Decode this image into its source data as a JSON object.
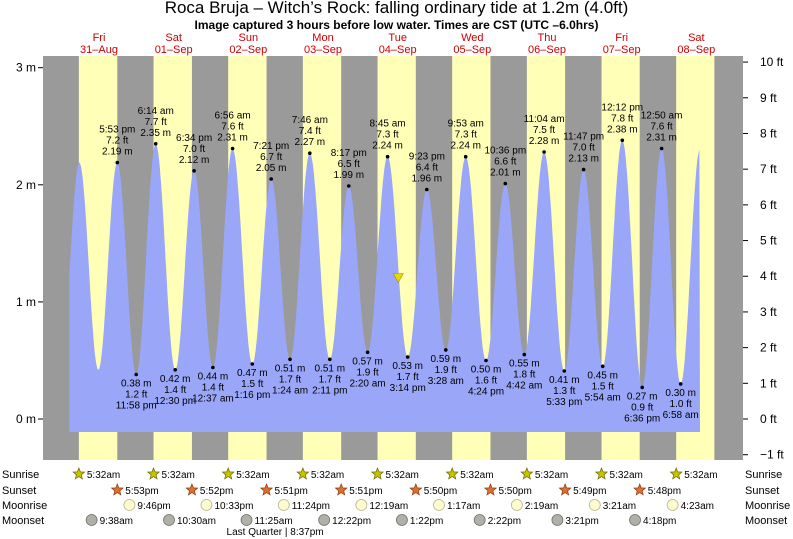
{
  "header": {
    "title": "Roca Bruja – Witch’s Rock: falling  ordinary tide at 1.2m (4.0ft)",
    "subtitle": "Image captured 3 hours before low water. Times are CST (UTC –6.0hrs)"
  },
  "colors": {
    "night": "#9a9a9a",
    "day": "#ffffb8",
    "tide": "#9aa6f8",
    "day_label": "#cc0000",
    "current_marker": "#e8d800"
  },
  "chart_data": {
    "type": "area",
    "title": "Roca Bruja – Witch’s Rock: falling  ordinary tide at 1.2m (4.0ft)",
    "y_left_label": "m",
    "y_right_label": "ft",
    "y_left_ticks": [
      "0 m",
      "1 m",
      "2 m",
      "3 m"
    ],
    "y_right_ticks": [
      "−1 ft",
      "0 ft",
      "1 ft",
      "2 ft",
      "3 ft",
      "4 ft",
      "5 ft",
      "6 ft",
      "7 ft",
      "8 ft",
      "9 ft",
      "10 ft"
    ],
    "ylim_m": [
      -0.35,
      3.1
    ],
    "xlim_hours": [
      -6,
      219
    ],
    "days": [
      {
        "dow": "Fri",
        "date": "31–Aug"
      },
      {
        "dow": "Sat",
        "date": "01–Sep"
      },
      {
        "dow": "Sun",
        "date": "02–Sep"
      },
      {
        "dow": "Mon",
        "date": "03–Sep"
      },
      {
        "dow": "Tue",
        "date": "04–Sep"
      },
      {
        "dow": "Wed",
        "date": "05–Sep"
      },
      {
        "dow": "Thu",
        "date": "06–Sep"
      },
      {
        "dow": "Fri",
        "date": "07–Sep"
      },
      {
        "dow": "Sat",
        "date": "08–Sep"
      }
    ],
    "extremes": [
      {
        "kind": "high",
        "day": 0,
        "time": "5:53 pm",
        "ft": "7.2 ft",
        "m": "2.19 m",
        "h": 17.88,
        "v": 2.19
      },
      {
        "kind": "low",
        "day": 0,
        "time": "11:58 pm",
        "ft": "1.2 ft",
        "m": "0.38 m",
        "h": 23.97,
        "v": 0.38
      },
      {
        "kind": "high",
        "day": 1,
        "time": "6:14 am",
        "ft": "7.7 ft",
        "m": "2.35 m",
        "h": 30.23,
        "v": 2.35
      },
      {
        "kind": "low",
        "day": 1,
        "time": "12:30 pm",
        "ft": "1.4 ft",
        "m": "0.42 m",
        "h": 36.5,
        "v": 0.42
      },
      {
        "kind": "high",
        "day": 1,
        "time": "6:34 pm",
        "ft": "7.0 ft",
        "m": "2.12 m",
        "h": 42.57,
        "v": 2.12
      },
      {
        "kind": "low",
        "day": 2,
        "time": "12:37 am",
        "ft": "1.4 ft",
        "m": "0.44 m",
        "h": 48.62,
        "v": 0.44
      },
      {
        "kind": "high",
        "day": 2,
        "time": "6:56 am",
        "ft": "7.6 ft",
        "m": "2.31 m",
        "h": 54.93,
        "v": 2.31
      },
      {
        "kind": "low",
        "day": 2,
        "time": "1:16 pm",
        "ft": "1.5 ft",
        "m": "0.47 m",
        "h": 61.27,
        "v": 0.47
      },
      {
        "kind": "high",
        "day": 2,
        "time": "7:21 pm",
        "ft": "6.7 ft",
        "m": "2.05 m",
        "h": 67.35,
        "v": 2.05
      },
      {
        "kind": "low",
        "day": 3,
        "time": "1:24 am",
        "ft": "1.7 ft",
        "m": "0.51 m",
        "h": 73.4,
        "v": 0.51
      },
      {
        "kind": "high",
        "day": 3,
        "time": "7:46 am",
        "ft": "7.4 ft",
        "m": "2.27 m",
        "h": 79.77,
        "v": 2.27
      },
      {
        "kind": "low",
        "day": 3,
        "time": "2:11 pm",
        "ft": "1.7 ft",
        "m": "0.51 m",
        "h": 86.18,
        "v": 0.51
      },
      {
        "kind": "high",
        "day": 3,
        "time": "8:17 pm",
        "ft": "6.5 ft",
        "m": "1.99 m",
        "h": 92.28,
        "v": 1.99
      },
      {
        "kind": "low",
        "day": 4,
        "time": "2:20 am",
        "ft": "1.9 ft",
        "m": "0.57 m",
        "h": 98.33,
        "v": 0.57
      },
      {
        "kind": "high",
        "day": 4,
        "time": "8:45 am",
        "ft": "7.3 ft",
        "m": "2.24 m",
        "h": 104.75,
        "v": 2.24
      },
      {
        "kind": "low",
        "day": 4,
        "time": "3:14 pm",
        "ft": "1.7 ft",
        "m": "0.53 m",
        "h": 111.23,
        "v": 0.53
      },
      {
        "kind": "high",
        "day": 4,
        "time": "9:23 pm",
        "ft": "6.4 ft",
        "m": "1.96 m",
        "h": 117.38,
        "v": 1.96
      },
      {
        "kind": "low",
        "day": 5,
        "time": "3:28 am",
        "ft": "1.9 ft",
        "m": "0.59 m",
        "h": 123.47,
        "v": 0.59
      },
      {
        "kind": "high",
        "day": 5,
        "time": "9:53 am",
        "ft": "7.3 ft",
        "m": "2.24 m",
        "h": 129.88,
        "v": 2.24
      },
      {
        "kind": "low",
        "day": 5,
        "time": "4:24 pm",
        "ft": "1.6 ft",
        "m": "0.50 m",
        "h": 136.4,
        "v": 0.5
      },
      {
        "kind": "high",
        "day": 5,
        "time": "10:36 pm",
        "ft": "6.6 ft",
        "m": "2.01 m",
        "h": 142.6,
        "v": 2.01
      },
      {
        "kind": "low",
        "day": 6,
        "time": "4:42 am",
        "ft": "1.8 ft",
        "m": "0.55 m",
        "h": 148.7,
        "v": 0.55
      },
      {
        "kind": "high",
        "day": 6,
        "time": "11:04 am",
        "ft": "7.5 ft",
        "m": "2.28 m",
        "h": 155.07,
        "v": 2.28
      },
      {
        "kind": "low",
        "day": 6,
        "time": "5:33 pm",
        "ft": "1.3 ft",
        "m": "0.41 m",
        "h": 161.55,
        "v": 0.41
      },
      {
        "kind": "high",
        "day": 6,
        "time": "11:47 pm",
        "ft": "7.0 ft",
        "m": "2.13 m",
        "h": 167.78,
        "v": 2.13
      },
      {
        "kind": "low",
        "day": 7,
        "time": "5:54 am",
        "ft": "1.5 ft",
        "m": "0.45 m",
        "h": 173.9,
        "v": 0.45
      },
      {
        "kind": "high",
        "day": 7,
        "time": "12:12 pm",
        "ft": "7.8 ft",
        "m": "2.38 m",
        "h": 180.2,
        "v": 2.38
      },
      {
        "kind": "low",
        "day": 7,
        "time": "6:36 pm",
        "ft": "0.9 ft",
        "m": "0.27 m",
        "h": 186.6,
        "v": 0.27
      },
      {
        "kind": "high",
        "day": 8,
        "time": "12:50 am",
        "ft": "7.6 ft",
        "m": "2.31 m",
        "h": 192.83,
        "v": 2.31
      },
      {
        "kind": "low",
        "day": 8,
        "time": "6:58 am",
        "ft": "1.0 ft",
        "m": "0.30 m",
        "h": 198.97,
        "v": 0.3
      }
    ],
    "current": {
      "h": 108.2,
      "v": 1.2
    },
    "sun": {
      "sunrise": "5:32am",
      "sunset_times": [
        "5:53pm",
        "5:52pm",
        "5:51pm",
        "5:51pm",
        "5:50pm",
        "5:50pm",
        "5:49pm",
        "5:48pm"
      ],
      "sunrise_h": 5.53,
      "sunset_h": [
        17.88,
        17.87,
        17.85,
        17.85,
        17.83,
        17.83,
        17.82,
        17.8
      ]
    },
    "moon": {
      "moonrise": [
        {
          "t": "9:46pm",
          "h": 21.77
        },
        {
          "t": "10:33pm",
          "h": 46.55
        },
        {
          "t": "11:24pm",
          "h": 71.4
        },
        {
          "t": "12:19am",
          "h": 96.32
        },
        {
          "t": "1:17am",
          "h": 121.28
        },
        {
          "t": "2:19am",
          "h": 146.32
        },
        {
          "t": "3:21am",
          "h": 171.35
        },
        {
          "t": "4:23am",
          "h": 196.38
        }
      ],
      "moonset": [
        {
          "t": "9:38am",
          "h": 9.63
        },
        {
          "t": "10:30am",
          "h": 34.5
        },
        {
          "t": "11:25am",
          "h": 59.42
        },
        {
          "t": "12:22pm",
          "h": 84.37
        },
        {
          "t": "1:22pm",
          "h": 109.37
        },
        {
          "t": "2:22pm",
          "h": 134.37
        },
        {
          "t": "3:21pm",
          "h": 159.35
        },
        {
          "t": "4:18pm",
          "h": 184.3
        }
      ],
      "phase_note": "Last Quarter | 8:37pm",
      "phase_note_h": 68.6
    },
    "rows": {
      "left": [
        "Sunrise",
        "Sunset",
        "Moonrise",
        "Moonset"
      ],
      "right": [
        "Sunrise",
        "Sunset",
        "Moonrise",
        "Moonset"
      ]
    }
  }
}
